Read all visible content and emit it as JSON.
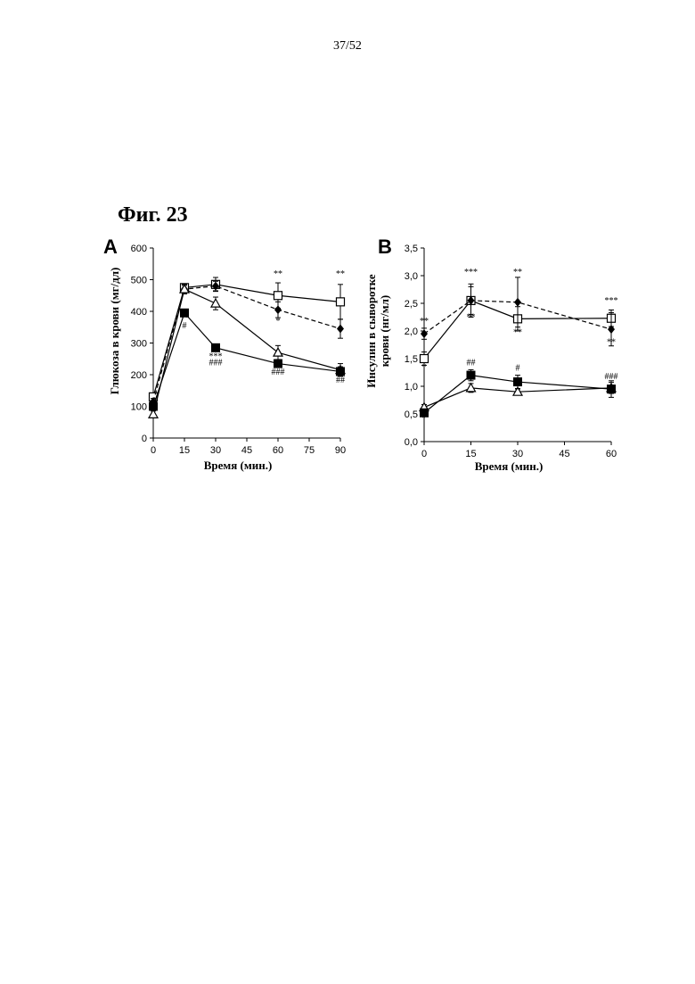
{
  "page": {
    "number": "37/52",
    "figure_title": "Фиг. 23"
  },
  "chart_data": [
    {
      "panel": "A",
      "type": "line",
      "xlabel": "Время (мин.)",
      "ylabel": "Глюкоза в крови (мг/дл)",
      "xlim": [
        0,
        90
      ],
      "ylim": [
        0,
        600
      ],
      "xticks": [
        0,
        15,
        30,
        45,
        60,
        75,
        90
      ],
      "yticks": [
        0,
        100,
        200,
        300,
        400,
        500,
        600
      ],
      "x": [
        0,
        15,
        30,
        60,
        90
      ],
      "series": [
        {
          "marker": "open-square",
          "dash": false,
          "values": [
            130,
            475,
            485,
            450,
            430
          ],
          "err": [
            10,
            10,
            22,
            40,
            55
          ]
        },
        {
          "marker": "filled-diamond",
          "dash": true,
          "values": [
            115,
            470,
            480,
            405,
            345
          ],
          "err": [
            10,
            12,
            15,
            25,
            30
          ]
        },
        {
          "marker": "open-triangle",
          "dash": false,
          "values": [
            75,
            470,
            425,
            270,
            215
          ],
          "err": [
            10,
            15,
            20,
            22,
            20
          ]
        },
        {
          "marker": "filled-square",
          "dash": false,
          "values": [
            100,
            395,
            285,
            235,
            210
          ],
          "err": [
            10,
            8,
            10,
            12,
            15
          ]
        }
      ],
      "annotations": [
        {
          "x": 60,
          "y": 510,
          "text": "**"
        },
        {
          "x": 90,
          "y": 510,
          "text": "**"
        },
        {
          "x": 60,
          "y": 360,
          "text": "*"
        },
        {
          "x": 15,
          "y": 372,
          "text": "**"
        },
        {
          "x": 15,
          "y": 347,
          "text": "#"
        },
        {
          "x": 30,
          "y": 250,
          "text": "***"
        },
        {
          "x": 30,
          "y": 230,
          "text": "###"
        },
        {
          "x": 60,
          "y": 200,
          "text": "###"
        },
        {
          "x": 90,
          "y": 175,
          "text": "##"
        }
      ]
    },
    {
      "panel": "B",
      "type": "line",
      "xlabel": "Время (мин.)",
      "ylabel": "Инсулин в сыворотке крови (нг/мл)",
      "xlim": [
        0,
        60
      ],
      "ylim": [
        0,
        3.5
      ],
      "xticks": [
        0,
        15,
        30,
        45,
        60
      ],
      "yticks": [
        "0,0",
        "0,5",
        "1,0",
        "1,5",
        "2,0",
        "2,5",
        "3,0",
        "3,5"
      ],
      "x": [
        0,
        15,
        30,
        60
      ],
      "series": [
        {
          "marker": "open-square",
          "dash": false,
          "values": [
            1.5,
            2.55,
            2.22,
            2.23
          ],
          "err": [
            0.12,
            0.3,
            0.22,
            0.15
          ]
        },
        {
          "marker": "filled-diamond",
          "dash": true,
          "values": [
            1.95,
            2.55,
            2.52,
            2.03
          ],
          "err": [
            0.1,
            0.25,
            0.45,
            0.3
          ]
        },
        {
          "marker": "open-triangle",
          "dash": false,
          "values": [
            0.62,
            0.97,
            0.9,
            0.97
          ],
          "err": [
            0.05,
            0.08,
            0.05,
            0.1
          ]
        },
        {
          "marker": "filled-square",
          "dash": false,
          "values": [
            0.52,
            1.2,
            1.08,
            0.95
          ],
          "err": [
            0.05,
            0.1,
            0.12,
            0.15
          ]
        }
      ],
      "annotations": [
        {
          "x": 0,
          "y": 2.13,
          "text": "**"
        },
        {
          "x": 0,
          "y": 1.3,
          "text": "*"
        },
        {
          "x": 0,
          "y": 0.43,
          "text": "#"
        },
        {
          "x": 15,
          "y": 3.02,
          "text": "***"
        },
        {
          "x": 15,
          "y": 2.2,
          "text": "**"
        },
        {
          "x": 15,
          "y": 1.38,
          "text": "##"
        },
        {
          "x": 30,
          "y": 3.02,
          "text": "**"
        },
        {
          "x": 30,
          "y": 1.93,
          "text": "**"
        },
        {
          "x": 30,
          "y": 1.28,
          "text": "#"
        },
        {
          "x": 60,
          "y": 2.5,
          "text": "***"
        },
        {
          "x": 60,
          "y": 1.75,
          "text": "**"
        },
        {
          "x": 60,
          "y": 1.13,
          "text": "###"
        }
      ]
    }
  ]
}
